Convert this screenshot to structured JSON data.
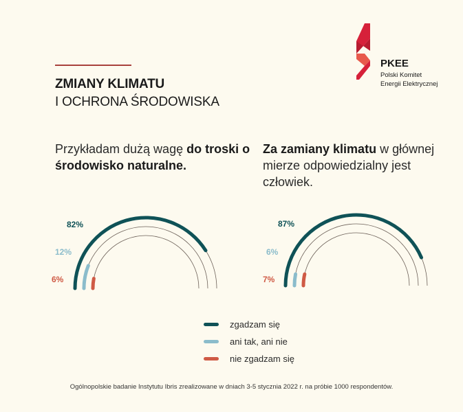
{
  "header": {
    "title_line1": "ZMIANY KLIMATU",
    "title_line2": "I OCHRONA ŚRODOWISKA",
    "accent_line_color": "#a8403c"
  },
  "logo": {
    "name": "PKEE",
    "subtitle_line1": "Polski Komitet",
    "subtitle_line2": "Energii Elektrycznej",
    "icon": "pkee-logo-icon"
  },
  "questions": [
    {
      "parts": [
        {
          "text": "Przykładam dużą wagę ",
          "bold": false
        },
        {
          "text": "do troski o środowisko naturalne.",
          "bold": true
        }
      ]
    },
    {
      "parts": [
        {
          "text": "Za zamiany klimatu",
          "bold": true
        },
        {
          "text": " w głównej mierze odpowiedzialny jest człowiek.",
          "bold": false
        }
      ]
    }
  ],
  "labels": {
    "c1": {
      "agree": "82%",
      "neutral": "12%",
      "disagree": "6%"
    },
    "c2": {
      "agree": "87%",
      "neutral": "6%",
      "disagree": "7%"
    }
  },
  "legend": [
    {
      "label": "zgadzam się",
      "color": "#0f5257"
    },
    {
      "label": "ani tak, ani nie",
      "color": "#8bbccb"
    },
    {
      "label": "nie zgadzam się",
      "color": "#cf5a45"
    }
  ],
  "footer": "Ogólnopolskie badanie Instytutu Ibris zrealizowane w dniach 3-5 stycznia 2022 r. na próbie 1000 respondentów.",
  "chart_data": [
    {
      "type": "radial-bar",
      "title": "Przykładam dużą wagę do troski o środowisko naturalne.",
      "categories": [
        "zgadzam się",
        "ani tak, ani nie",
        "nie zgadzam się"
      ],
      "values": [
        82,
        12,
        6
      ],
      "unit": "%",
      "colors": [
        "#0f5257",
        "#8bbccb",
        "#cf5a45"
      ],
      "legend_position": "bottom"
    },
    {
      "type": "radial-bar",
      "title": "Za zamiany klimatu w głównej mierze odpowiedzialny jest człowiek.",
      "categories": [
        "zgadzam się",
        "ani tak, ani nie",
        "nie zgadzam się"
      ],
      "values": [
        87,
        6,
        7
      ],
      "unit": "%",
      "colors": [
        "#0f5257",
        "#8bbccb",
        "#cf5a45"
      ],
      "legend_position": "bottom"
    }
  ]
}
